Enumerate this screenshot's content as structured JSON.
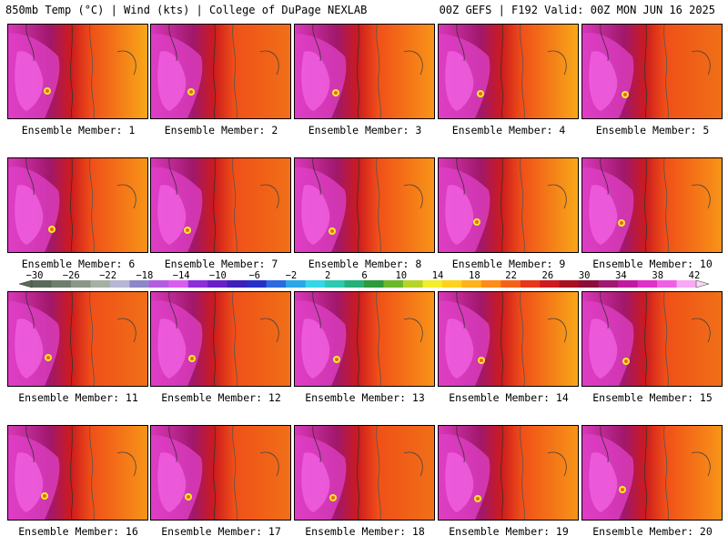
{
  "header": {
    "left": "850mb Temp (°C) | Wind (kts) | College of DuPage NEXLAB",
    "right": "00Z GEFS | F192 Valid: 00Z MON JUN 16 2025"
  },
  "panels": [
    {
      "label": "Ensemble Member: 1",
      "style": 1
    },
    {
      "label": "Ensemble Member: 2",
      "style": 2
    },
    {
      "label": "Ensemble Member: 3",
      "style": 3
    },
    {
      "label": "Ensemble Member: 4",
      "style": 1
    },
    {
      "label": "Ensemble Member: 5",
      "style": 2
    },
    {
      "label": "Ensemble Member: 6",
      "style": 3
    },
    {
      "label": "Ensemble Member: 7",
      "style": 2
    },
    {
      "label": "Ensemble Member: 8",
      "style": 3
    },
    {
      "label": "Ensemble Member: 9",
      "style": 1
    },
    {
      "label": "Ensemble Member: 10",
      "style": 3
    },
    {
      "label": "Ensemble Member: 11",
      "style": 2
    },
    {
      "label": "Ensemble Member: 12",
      "style": 2
    },
    {
      "label": "Ensemble Member: 13",
      "style": 3
    },
    {
      "label": "Ensemble Member: 14",
      "style": 1
    },
    {
      "label": "Ensemble Member: 15",
      "style": 2
    },
    {
      "label": "Ensemble Member: 16",
      "style": 3
    },
    {
      "label": "Ensemble Member: 17",
      "style": 2
    },
    {
      "label": "Ensemble Member: 18",
      "style": 2
    },
    {
      "label": "Ensemble Member: 19",
      "style": 3
    },
    {
      "label": "Ensemble Member: 20",
      "style": 3
    }
  ],
  "colorbar": {
    "ticks": [
      "−30",
      "−26",
      "−22",
      "−18",
      "−14",
      "−10",
      "−6",
      "−2",
      "2",
      "6",
      "10",
      "14",
      "18",
      "22",
      "26",
      "30",
      "34",
      "38",
      "42"
    ],
    "colors": [
      "#5a6a5a",
      "#6e7e6e",
      "#8a968a",
      "#a6b0a6",
      "#b7b7d3",
      "#8f86c8",
      "#b35ce0",
      "#d85ef0",
      "#8c2fd9",
      "#6a1fc9",
      "#3f1fb8",
      "#2530c8",
      "#2b6ae0",
      "#2aa6ea",
      "#35d6e6",
      "#2dc9b0",
      "#25b07a",
      "#2e9a3c",
      "#6cb82a",
      "#b6d42a",
      "#f2ee2a",
      "#ffd21e",
      "#ffb21a",
      "#ff8c18",
      "#f4621a",
      "#e8361a",
      "#cc1a1e",
      "#a8101e",
      "#8c0c3a",
      "#a01870",
      "#c01aa0",
      "#e030c8",
      "#f060e4",
      "#f8a8f4"
    ]
  }
}
